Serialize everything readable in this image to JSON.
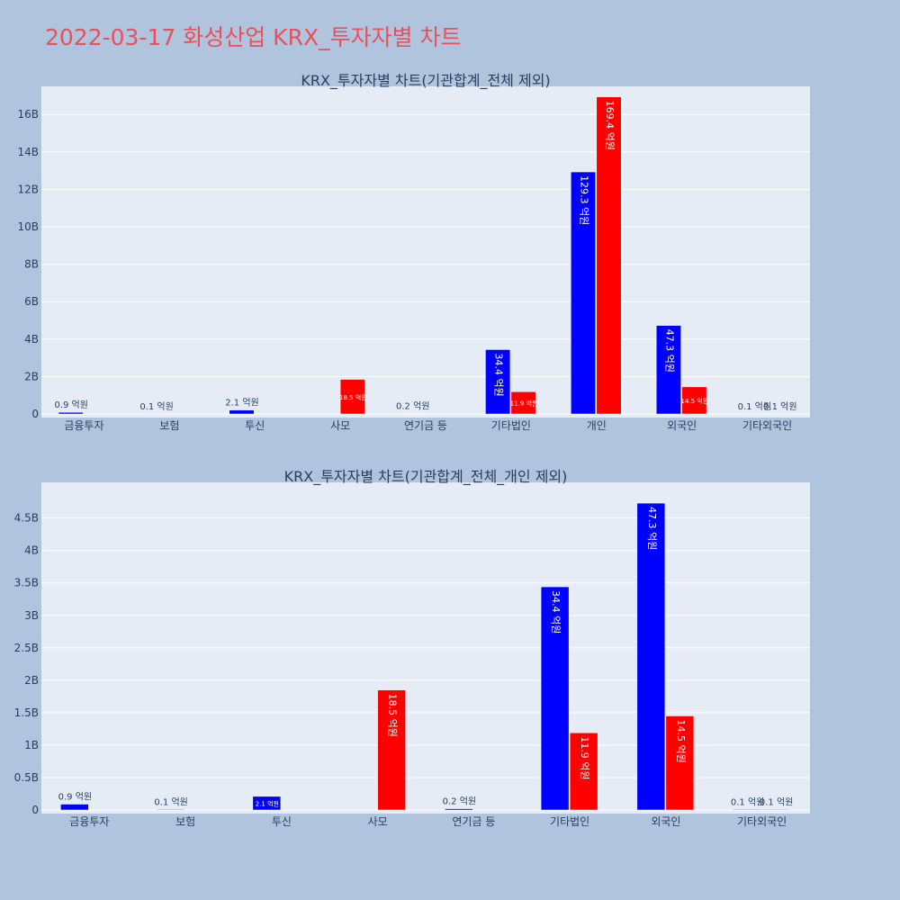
{
  "page_title": "2022-03-17 화성산업 KRX_투자자별 차트",
  "colors": {
    "buy": "#0000ff",
    "sell": "#ff0000",
    "plot_bg": "#e5ecf6",
    "page_bg": "#b0c4de",
    "title": "#e8505b"
  },
  "chart_data": [
    {
      "type": "bar",
      "title": "KRX_투자자별 차트(기관합계_전체 제외)",
      "categories": [
        "금융투자",
        "보험",
        "투신",
        "사모",
        "연기금 등",
        "기타법인",
        "개인",
        "외국인",
        "기타외국인"
      ],
      "ylim": [
        0,
        17500000000
      ],
      "y_ticks": [
        0,
        2000000000,
        4000000000,
        6000000000,
        8000000000,
        10000000000,
        12000000000,
        14000000000,
        16000000000
      ],
      "y_tick_labels": [
        "0",
        "2B",
        "4B",
        "6B",
        "8B",
        "10B",
        "12B",
        "14B",
        "16B"
      ],
      "grid": true,
      "series": [
        {
          "color": "#0000ff",
          "values": [
            90000000,
            10000000,
            210000000,
            0,
            20000000,
            3440000000,
            12930000000,
            4730000000,
            10000000
          ],
          "labels": [
            "0.9 억원",
            "0.1 억원",
            "2.1 억원",
            "",
            "0.2 억원",
            "34.4 억원",
            "129.3 억원",
            "47.3 억원",
            "0.1 억원"
          ]
        },
        {
          "color": "#ff0000",
          "values": [
            0,
            0,
            0,
            1850000000,
            0,
            1190000000,
            16940000000,
            1450000000,
            10000000
          ],
          "labels": [
            "",
            "",
            "",
            "18.5 억원",
            "",
            "11.9 억원",
            "169.4 억원",
            "14.5 억원",
            "0.1 억원"
          ]
        }
      ]
    },
    {
      "type": "bar",
      "title": "KRX_투자자별 차트(기관합계_전체_개인 제외)",
      "categories": [
        "금융투자",
        "보험",
        "투신",
        "사모",
        "연기금 등",
        "기타법인",
        "외국인",
        "기타외국인"
      ],
      "ylim": [
        0,
        5050000000
      ],
      "y_ticks": [
        0,
        500000000,
        1000000000,
        1500000000,
        2000000000,
        2500000000,
        3000000000,
        3500000000,
        4000000000,
        4500000000
      ],
      "y_tick_labels": [
        "0",
        "0.5B",
        "1B",
        "1.5B",
        "2B",
        "2.5B",
        "3B",
        "3.5B",
        "4B",
        "4.5B"
      ],
      "grid": true,
      "series": [
        {
          "color": "#0000ff",
          "values": [
            90000000,
            10000000,
            210000000,
            0,
            20000000,
            3440000000,
            4730000000,
            10000000
          ],
          "labels": [
            "0.9 억원",
            "0.1 억원",
            "2.1 억원",
            "",
            "0.2 억원",
            "34.4 억원",
            "47.3 억원",
            "0.1 억원"
          ]
        },
        {
          "color": "#ff0000",
          "values": [
            0,
            0,
            0,
            1850000000,
            0,
            1190000000,
            1450000000,
            10000000
          ],
          "labels": [
            "",
            "",
            "",
            "18.5 억원",
            "",
            "11.9 억원",
            "14.5 억원",
            "0.1 억원"
          ]
        }
      ]
    }
  ]
}
